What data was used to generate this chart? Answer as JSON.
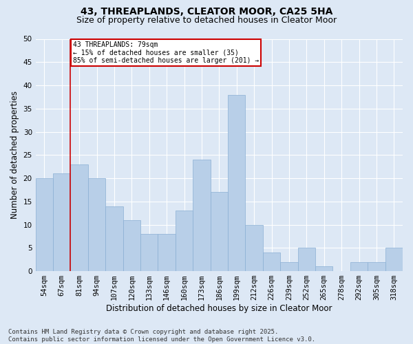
{
  "title": "43, THREAPLANDS, CLEATOR MOOR, CA25 5HA",
  "subtitle": "Size of property relative to detached houses in Cleator Moor",
  "xlabel": "Distribution of detached houses by size in Cleator Moor",
  "ylabel": "Number of detached properties",
  "categories": [
    "54sqm",
    "67sqm",
    "81sqm",
    "94sqm",
    "107sqm",
    "120sqm",
    "133sqm",
    "146sqm",
    "160sqm",
    "173sqm",
    "186sqm",
    "199sqm",
    "212sqm",
    "226sqm",
    "239sqm",
    "252sqm",
    "265sqm",
    "278sqm",
    "292sqm",
    "305sqm",
    "318sqm"
  ],
  "values": [
    20,
    21,
    23,
    20,
    14,
    11,
    8,
    8,
    13,
    24,
    17,
    38,
    10,
    4,
    2,
    5,
    1,
    0,
    2,
    2,
    5
  ],
  "bar_color": "#b8cfe8",
  "bar_edge_color": "#8aafd4",
  "annotation_text": "43 THREAPLANDS: 79sqm\n← 15% of detached houses are smaller (35)\n85% of semi-detached houses are larger (201) →",
  "annotation_box_color": "#ffffff",
  "annotation_box_edge_color": "#cc0000",
  "vline_color": "#cc0000",
  "vline_x_index": 1.5,
  "ylim": [
    0,
    50
  ],
  "yticks": [
    0,
    5,
    10,
    15,
    20,
    25,
    30,
    35,
    40,
    45,
    50
  ],
  "background_color": "#dde8f5",
  "plot_background_color": "#dde8f5",
  "grid_color": "#ffffff",
  "footer": "Contains HM Land Registry data © Crown copyright and database right 2025.\nContains public sector information licensed under the Open Government Licence v3.0.",
  "title_fontsize": 10,
  "subtitle_fontsize": 9,
  "axis_label_fontsize": 8.5,
  "tick_fontsize": 7.5,
  "footer_fontsize": 6.5
}
